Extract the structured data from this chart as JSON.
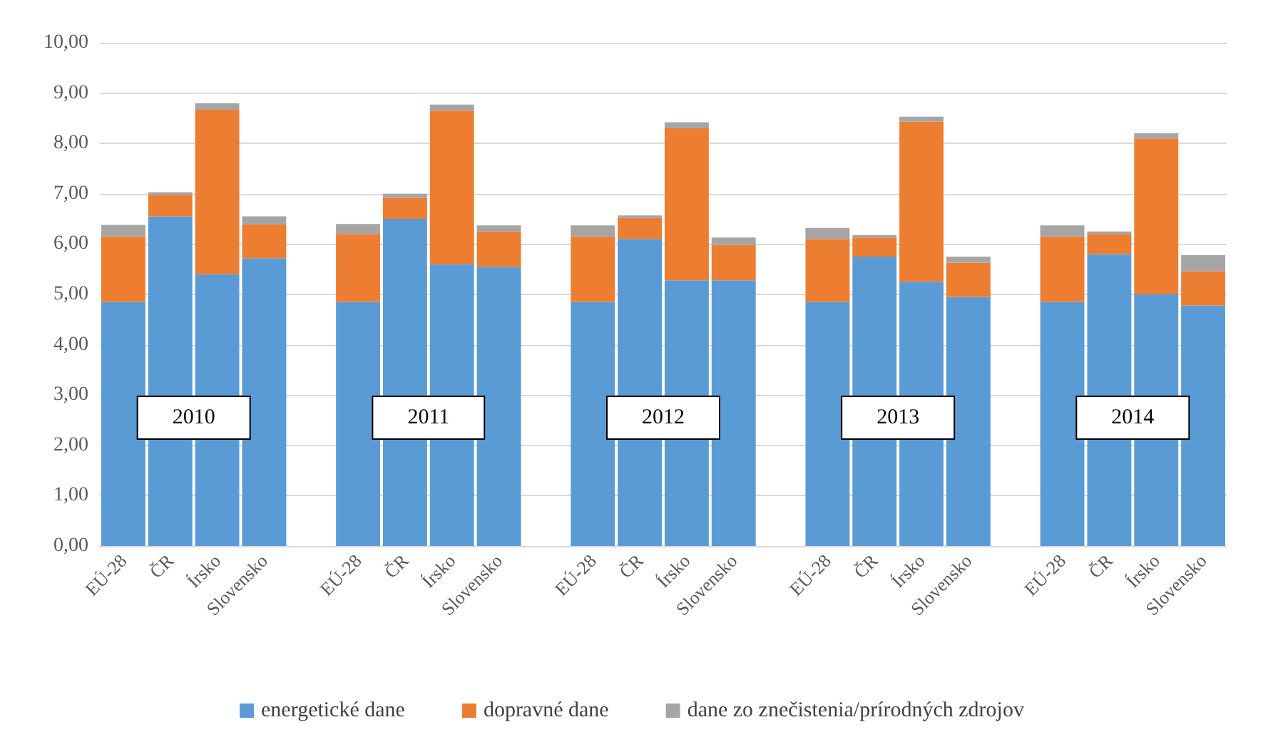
{
  "chart_data": {
    "type": "bar",
    "stacked": true,
    "categories": [
      "EÚ-28",
      "ČR",
      "Írsko",
      "Slovensko",
      null,
      "EÚ-28",
      "ČR",
      "Írsko",
      "Slovensko",
      null,
      "EÚ-28",
      "ČR",
      "Írsko",
      "Slovensko",
      null,
      "EÚ-28",
      "ČR",
      "Írsko",
      "Slovensko",
      null,
      "EÚ-28",
      "ČR",
      "Írsko",
      "Slovensko"
    ],
    "series": [
      {
        "name": "energetické dane",
        "color": "#5b9bd5",
        "values": [
          4.85,
          6.55,
          5.4,
          5.72,
          null,
          4.85,
          6.5,
          5.6,
          5.55,
          null,
          4.85,
          6.1,
          5.28,
          5.28,
          null,
          4.85,
          5.75,
          5.25,
          4.95,
          null,
          4.85,
          5.8,
          5.0,
          4.78
        ]
      },
      {
        "name": "dopravné dane",
        "color": "#ed7d31",
        "values": [
          1.3,
          0.43,
          3.27,
          0.68,
          null,
          1.35,
          0.42,
          3.05,
          0.7,
          null,
          1.3,
          0.42,
          3.02,
          0.7,
          null,
          1.25,
          0.38,
          3.18,
          0.68,
          null,
          1.3,
          0.4,
          3.1,
          0.68
        ]
      },
      {
        "name": "dane zo znečistenia/prírodných zdrojov",
        "color": "#a5a5a5",
        "values": [
          0.23,
          0.05,
          0.13,
          0.15,
          null,
          0.2,
          0.08,
          0.12,
          0.12,
          null,
          0.22,
          0.05,
          0.12,
          0.15,
          null,
          0.22,
          0.05,
          0.1,
          0.12,
          null,
          0.22,
          0.05,
          0.1,
          0.32
        ]
      }
    ],
    "ylim": [
      0,
      10
    ],
    "yticks": [
      {
        "value": 0,
        "label": "0,00"
      },
      {
        "value": 1,
        "label": "1,00"
      },
      {
        "value": 2,
        "label": "2,00"
      },
      {
        "value": 3,
        "label": "3,00"
      },
      {
        "value": 4,
        "label": "4,00"
      },
      {
        "value": 5,
        "label": "5,00"
      },
      {
        "value": 6,
        "label": "6,00"
      },
      {
        "value": 7,
        "label": "7,00"
      },
      {
        "value": 8,
        "label": "8,00"
      },
      {
        "value": 9,
        "label": "9,00"
      },
      {
        "value": 10,
        "label": "10,00"
      }
    ],
    "grid": "y",
    "legend": "bottom",
    "annotations": [
      "2010",
      "2011",
      "2012",
      "2013",
      "2014"
    ]
  }
}
